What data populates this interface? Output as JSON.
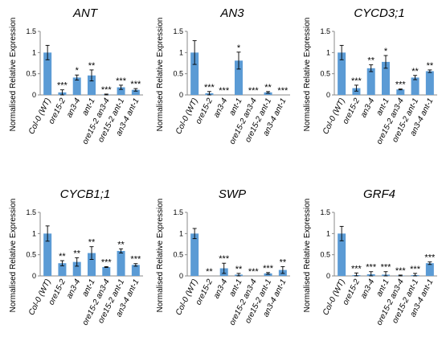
{
  "chart_data": [
    {
      "type": "bar",
      "title": "ANT",
      "ylabel": "Normalised Relative Expression",
      "ylim": [
        0,
        1.5
      ],
      "yticks": [
        "0",
        "0.5",
        "1",
        "1.5"
      ],
      "categories": [
        "Col-0 (WT)",
        "ore15-2",
        "an3-4",
        "ant-1",
        "ore15-2 an3-4",
        "ore15-2 ant-1",
        "an3-4 ant-1"
      ],
      "values": [
        1.0,
        0.06,
        0.41,
        0.46,
        0.01,
        0.18,
        0.12
      ],
      "errors": [
        0.17,
        0.06,
        0.06,
        0.13,
        0.01,
        0.05,
        0.03
      ],
      "significance": [
        "",
        "***",
        "*",
        "**",
        "***",
        "***",
        "***"
      ],
      "color": "#5b9bd5"
    },
    {
      "type": "bar",
      "title": "AN3",
      "ylabel": "Normalised Relative Expression",
      "ylim": [
        0,
        1.5
      ],
      "yticks": [
        "0",
        "0.5",
        "1",
        "1.5"
      ],
      "categories": [
        "Col-0 (WT)",
        "ore15-2",
        "an3-4",
        "ant-1",
        "ore15-2 an3-4",
        "ore15-2 ant-1",
        "an3-4 ant-1"
      ],
      "values": [
        1.0,
        0.04,
        0.0,
        0.81,
        0.0,
        0.06,
        0.0
      ],
      "errors": [
        0.28,
        0.04,
        0.0,
        0.2,
        0.0,
        0.02,
        0.0
      ],
      "significance": [
        "",
        "***",
        "***",
        "*",
        "***",
        "**",
        "***"
      ],
      "color": "#5b9bd5"
    },
    {
      "type": "bar",
      "title": "CYCD3;1",
      "ylabel": "Normalised Relative Expression",
      "ylim": [
        0,
        1.5
      ],
      "yticks": [
        "0",
        "0.5",
        "1",
        "1.5"
      ],
      "categories": [
        "Col-0 (WT)",
        "ore15-2",
        "an3-4",
        "ant-1",
        "ore15-2 an3-4",
        "ore15-2 ant-1",
        "an3-4 ant-1"
      ],
      "values": [
        1.0,
        0.16,
        0.63,
        0.78,
        0.13,
        0.41,
        0.56
      ],
      "errors": [
        0.17,
        0.07,
        0.08,
        0.15,
        0.01,
        0.05,
        0.03
      ],
      "significance": [
        "",
        "***",
        "**",
        "*",
        "***",
        "**",
        "**"
      ],
      "color": "#5b9bd5"
    },
    {
      "type": "bar",
      "title": "CYCB1;1",
      "ylabel": "Normalised Relative Expression",
      "ylim": [
        0,
        1.5
      ],
      "yticks": [
        "0",
        "0.5",
        "1",
        "1.5"
      ],
      "categories": [
        "Col-0 (WT)",
        "ore15-2",
        "an3-4",
        "ant-1",
        "ore15-2 an3-4",
        "ore15-2 ant-1",
        "an3-4 ant-1"
      ],
      "values": [
        1.0,
        0.3,
        0.33,
        0.54,
        0.21,
        0.59,
        0.26
      ],
      "errors": [
        0.18,
        0.06,
        0.1,
        0.15,
        0.01,
        0.05,
        0.03
      ],
      "significance": [
        "",
        "**",
        "**",
        "**",
        "***",
        "**",
        "***"
      ],
      "color": "#5b9bd5"
    },
    {
      "type": "bar",
      "title": "SWP",
      "ylabel": "Normalised Relative Expression",
      "ylim": [
        0,
        1.5
      ],
      "yticks": [
        "0",
        "0.5",
        "1",
        "1.5"
      ],
      "categories": [
        "Col-0 (WT)",
        "ore15-2",
        "an3-4",
        "ant-1",
        "ore15-2 an3-4",
        "ore15-2 ant-1",
        "an3-4 ant-1"
      ],
      "values": [
        1.0,
        0.0,
        0.18,
        0.03,
        0.0,
        0.06,
        0.14
      ],
      "errors": [
        0.12,
        0.0,
        0.12,
        0.03,
        0.0,
        0.02,
        0.08
      ],
      "significance": [
        "",
        "**",
        "***",
        "**",
        "***",
        "***",
        "**"
      ],
      "color": "#5b9bd5"
    },
    {
      "type": "bar",
      "title": "GRF4",
      "ylabel": "Normalised Relative Expression",
      "ylim": [
        0,
        1.5
      ],
      "yticks": [
        "0",
        "0.5",
        "1",
        "1.5"
      ],
      "categories": [
        "Col-0 (WT)",
        "ore15-2",
        "an3-4",
        "ant-1",
        "ore15-2 an3-4",
        "ore15-2 ant-1",
        "an3-4 ant-1"
      ],
      "values": [
        1.0,
        0.02,
        0.04,
        0.03,
        0.01,
        0.02,
        0.3
      ],
      "errors": [
        0.17,
        0.05,
        0.06,
        0.07,
        0.01,
        0.04,
        0.03
      ],
      "significance": [
        "",
        "***",
        "***",
        "***",
        "***",
        "***",
        "***"
      ],
      "color": "#5b9bd5"
    }
  ]
}
